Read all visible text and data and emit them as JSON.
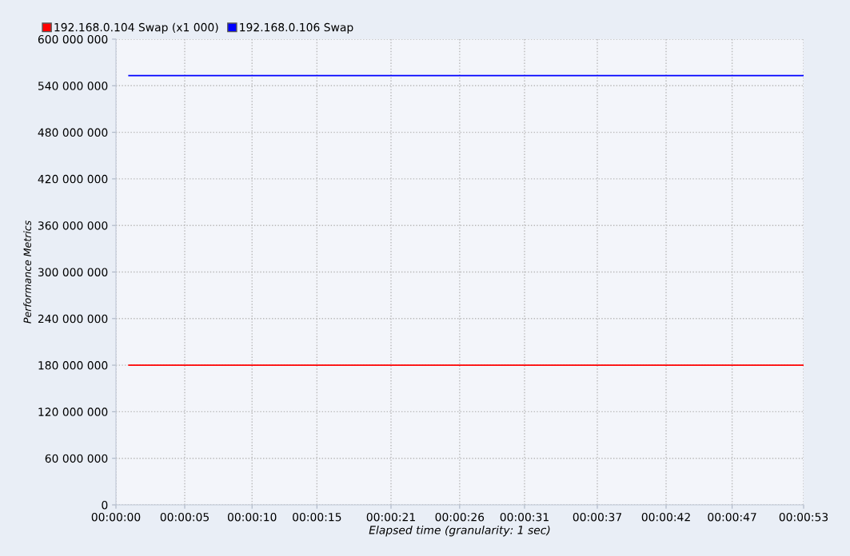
{
  "chart_data": {
    "type": "line",
    "xlabel": "Elapsed time (granularity: 1 sec)",
    "ylabel": "Performance Metrics",
    "x": [
      1,
      53
    ],
    "series": [
      {
        "name": "192.168.0.104 Swap (x1 000)",
        "color": "#ff0000",
        "values": [
          180000000,
          180000000
        ]
      },
      {
        "name": "192.168.0.106 Swap",
        "color": "#0000ff",
        "values": [
          553000000,
          553000000
        ]
      }
    ],
    "xlim": [
      0,
      53
    ],
    "xticks": [
      {
        "value": 0,
        "label": "00:00:00"
      },
      {
        "value": 5.3,
        "label": "00:00:05"
      },
      {
        "value": 10.49,
        "label": "00:00:10"
      },
      {
        "value": 15.49,
        "label": "00:00:15"
      },
      {
        "value": 21.2,
        "label": "00:00:21"
      },
      {
        "value": 26.49,
        "label": "00:00:26"
      },
      {
        "value": 31.49,
        "label": "00:00:31"
      },
      {
        "value": 37.1,
        "label": "00:00:37"
      },
      {
        "value": 42.4,
        "label": "00:00:42"
      },
      {
        "value": 47.49,
        "label": "00:00:47"
      },
      {
        "value": 53,
        "label": "00:00:53"
      }
    ],
    "ylim": [
      0,
      600000000
    ],
    "yticks": [
      0,
      {
        "value": 60000000,
        "label": "60 000 000"
      },
      {
        "value": 120000000,
        "label": "120 000 000"
      },
      {
        "value": 180000000,
        "label": "180 000 000"
      },
      {
        "value": 240000000,
        "label": "240 000 000"
      },
      {
        "value": 300000000,
        "label": "300 000 000"
      },
      {
        "value": 360000000,
        "label": "360 000 000"
      },
      {
        "value": 420000000,
        "label": "420 000 000"
      },
      {
        "value": 480000000,
        "label": "480 000 000"
      },
      {
        "value": 540000000,
        "label": "540 000 000"
      },
      {
        "value": 600000000,
        "label": "600 000 000"
      }
    ],
    "grid": true,
    "legend": "top left",
    "marker": "none",
    "line_style": "solid"
  }
}
